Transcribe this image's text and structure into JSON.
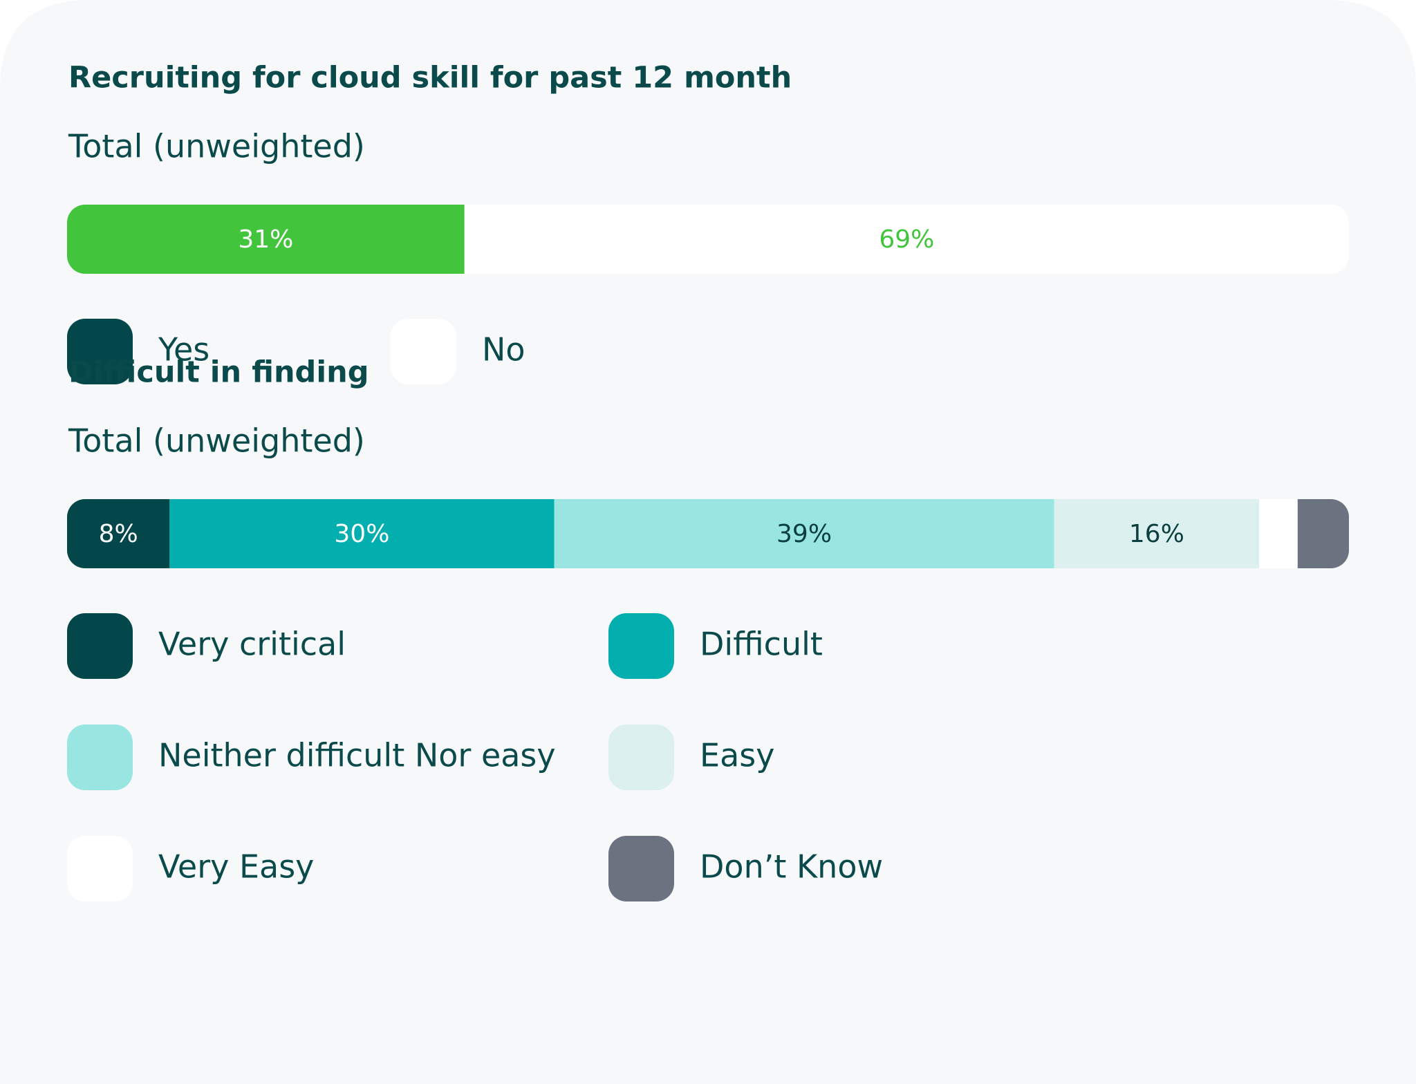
{
  "chart_data": [
    {
      "type": "stacked-bar",
      "title": "Recruiting for cloud skill for past 12 month",
      "categories": [
        "Total (unweighted)"
      ],
      "xlim": [
        0,
        100
      ],
      "series": [
        {
          "name": "Yes",
          "color": "#42c53c",
          "legend_color": "#03474a",
          "label_color": "#ffffff",
          "values": [
            31
          ],
          "value_labels": [
            "31%"
          ]
        },
        {
          "name": "No",
          "color": "#ffffff",
          "legend_color": "#ffffff",
          "label_color": "#42c53c",
          "values": [
            69
          ],
          "value_labels": [
            "69%"
          ]
        }
      ]
    },
    {
      "type": "stacked-bar",
      "title": "Difficult in finding",
      "categories": [
        "Total (unweighted)"
      ],
      "xlim": [
        0,
        100
      ],
      "series": [
        {
          "name": "Very critical",
          "color": "#03474a",
          "legend_color": "#03474a",
          "label_color": "#ffffff",
          "values": [
            8
          ],
          "value_labels": [
            "8%"
          ]
        },
        {
          "name": "Difficult",
          "color": "#03aeae",
          "legend_color": "#03aeae",
          "label_color": "#ffffff",
          "values": [
            30
          ],
          "value_labels": [
            "30%"
          ]
        },
        {
          "name": "Neither difficult Nor easy",
          "color": "#98e5e1",
          "legend_color": "#98e5e1",
          "label_color": "#0b3f3f",
          "values": [
            39
          ],
          "value_labels": [
            "39%"
          ]
        },
        {
          "name": "Easy",
          "color": "#dcf1ef",
          "legend_color": "#dcf1ef",
          "label_color": "#0b3f3f",
          "values": [
            16
          ],
          "value_labels": [
            "16%"
          ]
        },
        {
          "name": "Very Easy",
          "color": "#ffffff",
          "legend_color": "#ffffff",
          "label_color": "#0b3f3f",
          "values": [
            3
          ],
          "value_labels": [
            null
          ]
        },
        {
          "name": "Don’t Know",
          "color": "#6b7280",
          "legend_color": "#6b7280",
          "label_color": "#ffffff",
          "values": [
            4
          ],
          "value_labels": [
            null
          ]
        }
      ]
    }
  ]
}
